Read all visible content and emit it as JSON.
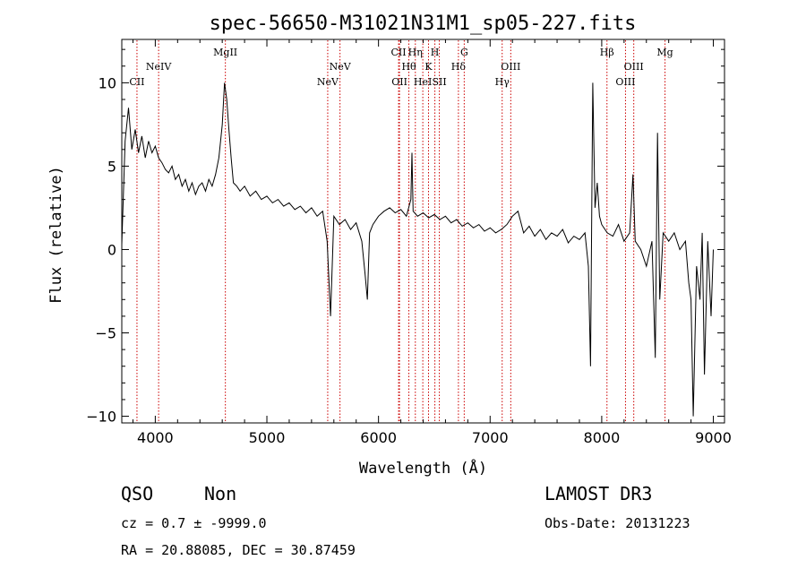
{
  "chart_data": {
    "type": "line",
    "title": "spec-56650-M31021N31M1_sp05-227.fits",
    "xlabel": "Wavelength (Å)",
    "ylabel": "Flux (relative)",
    "xlim": [
      3700,
      9100
    ],
    "ylim": [
      -10.4,
      12.6
    ],
    "xticks": [
      4000,
      5000,
      6000,
      7000,
      8000,
      9000
    ],
    "yticks": [
      -10,
      -5,
      0,
      5,
      10
    ],
    "grid": false,
    "series": [
      {
        "color": "#000000",
        "x": [
          3700,
          3730,
          3760,
          3790,
          3820,
          3850,
          3880,
          3910,
          3940,
          3970,
          4000,
          4030,
          4060,
          4090,
          4120,
          4150,
          4180,
          4210,
          4240,
          4270,
          4300,
          4330,
          4360,
          4390,
          4420,
          4450,
          4480,
          4510,
          4540,
          4570,
          4600,
          4620,
          4640,
          4660,
          4680,
          4700,
          4730,
          4760,
          4800,
          4850,
          4900,
          4950,
          5000,
          5050,
          5100,
          5150,
          5200,
          5250,
          5300,
          5350,
          5400,
          5450,
          5500,
          5540,
          5570,
          5600,
          5650,
          5700,
          5750,
          5800,
          5850,
          5880,
          5900,
          5920,
          5950,
          6000,
          6050,
          6100,
          6150,
          6200,
          6250,
          6290,
          6300,
          6310,
          6350,
          6400,
          6450,
          6500,
          6550,
          6600,
          6650,
          6700,
          6750,
          6800,
          6850,
          6900,
          6950,
          7000,
          7050,
          7100,
          7150,
          7200,
          7250,
          7300,
          7350,
          7400,
          7450,
          7500,
          7550,
          7600,
          7650,
          7700,
          7750,
          7800,
          7850,
          7880,
          7900,
          7920,
          7940,
          7960,
          7980,
          8000,
          8050,
          8100,
          8150,
          8200,
          8250,
          8280,
          8300,
          8350,
          8400,
          8450,
          8480,
          8500,
          8520,
          8550,
          8600,
          8650,
          8700,
          8750,
          8780,
          8800,
          8820,
          8850,
          8880,
          8900,
          8920,
          8950,
          8980,
          9000
        ],
        "y": [
          0.3,
          6.5,
          8.5,
          6.0,
          7.2,
          5.8,
          6.8,
          5.5,
          6.5,
          5.8,
          6.2,
          5.5,
          5.2,
          4.8,
          4.6,
          5.0,
          4.2,
          4.5,
          3.8,
          4.2,
          3.5,
          4.0,
          3.3,
          3.8,
          4.0,
          3.5,
          4.2,
          3.8,
          4.5,
          5.5,
          7.5,
          10.0,
          9.0,
          7.2,
          5.5,
          4.0,
          3.8,
          3.5,
          3.8,
          3.2,
          3.5,
          3.0,
          3.2,
          2.8,
          3.0,
          2.6,
          2.8,
          2.4,
          2.6,
          2.2,
          2.5,
          2.0,
          2.3,
          0.5,
          -4.0,
          2.0,
          1.5,
          1.8,
          1.2,
          1.6,
          0.5,
          -1.5,
          -3.0,
          1.0,
          1.5,
          2.0,
          2.3,
          2.5,
          2.2,
          2.4,
          2.0,
          3.0,
          5.8,
          2.3,
          2.0,
          2.2,
          1.9,
          2.1,
          1.8,
          2.0,
          1.6,
          1.8,
          1.4,
          1.6,
          1.3,
          1.5,
          1.1,
          1.3,
          1.0,
          1.2,
          1.5,
          2.0,
          2.3,
          1.0,
          1.4,
          0.8,
          1.2,
          0.6,
          1.0,
          0.8,
          1.2,
          0.4,
          0.8,
          0.6,
          1.0,
          -1.0,
          -7.0,
          10.0,
          2.5,
          4.0,
          2.0,
          1.5,
          1.0,
          0.8,
          1.5,
          0.5,
          1.0,
          4.5,
          0.5,
          0.0,
          -1.0,
          0.5,
          -6.5,
          7.0,
          -3.0,
          1.0,
          0.5,
          1.0,
          0.0,
          0.5,
          -2.0,
          -3.0,
          -10.0,
          -1.0,
          -3.0,
          1.0,
          -7.5,
          0.5,
          -4.0,
          0.0
        ]
      }
    ],
    "emission_lines": [
      {
        "name": "CII",
        "x": 3836,
        "row": 3
      },
      {
        "name": "NeIV",
        "x": 4030,
        "row": 2
      },
      {
        "name": "MgII",
        "x": 4628,
        "row": 1
      },
      {
        "name": "NeV",
        "x": 5545,
        "row": 3
      },
      {
        "name": "NeV",
        "x": 5655,
        "row": 2
      },
      {
        "name": "CII",
        "x": 6180,
        "row": 1
      },
      {
        "name": "OII",
        "x": 6188,
        "row": 3
      },
      {
        "name": "Hθ",
        "x": 6272,
        "row": 2
      },
      {
        "name": "Hη",
        "x": 6330,
        "row": 1
      },
      {
        "name": "HeI",
        "x": 6397,
        "row": 3
      },
      {
        "name": "K",
        "x": 6448,
        "row": 2
      },
      {
        "name": "H",
        "x": 6505,
        "row": 1
      },
      {
        "name": "SII",
        "x": 6545,
        "row": 3
      },
      {
        "name": "Hδ",
        "x": 6716,
        "row": 2
      },
      {
        "name": "G",
        "x": 6768,
        "row": 1
      },
      {
        "name": "Hγ",
        "x": 7108,
        "row": 3
      },
      {
        "name": "OIII",
        "x": 7185,
        "row": 2
      },
      {
        "name": "Hβ",
        "x": 8047,
        "row": 1
      },
      {
        "name": "OIII",
        "x": 8213,
        "row": 3
      },
      {
        "name": "OIII",
        "x": 8287,
        "row": 2
      },
      {
        "name": "Mg",
        "x": 8567,
        "row": 1
      }
    ]
  },
  "footer": {
    "class": "QSO",
    "subclass": "Non",
    "survey": "LAMOST DR3",
    "cz": "cz = 0.7 ± -9999.0",
    "obs_date": "Obs-Date: 20131223",
    "radec": "RA =  20.88085, DEC =  30.87459"
  }
}
